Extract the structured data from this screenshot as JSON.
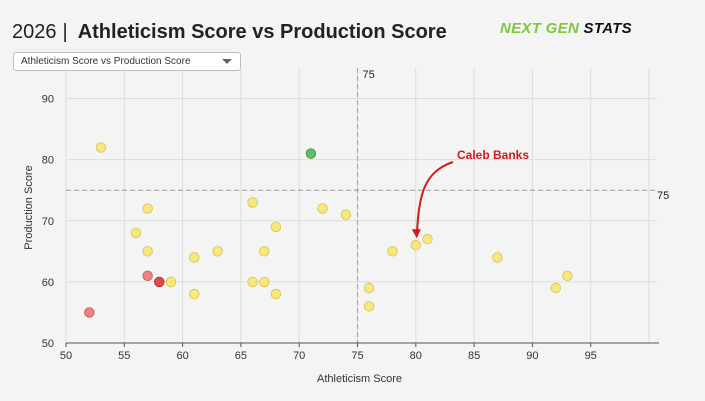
{
  "header": {
    "year": "2026",
    "separator": "|",
    "title": "Athleticism Score vs Production Score"
  },
  "logo": {
    "part1": "NEXT GEN",
    "part2": "STATS",
    "color_part1": "#7ec83a"
  },
  "dropdown": {
    "selected": "Athleticism Score vs Production Score",
    "icon": "chevron-down-icon"
  },
  "chart_data": {
    "type": "scatter",
    "xlabel": "Athleticism Score",
    "ylabel": "Production Score",
    "xlim": [
      50,
      100
    ],
    "ylim": [
      50,
      95
    ],
    "x_ticks": [
      50,
      55,
      60,
      65,
      70,
      75,
      80,
      85,
      90,
      95
    ],
    "y_ticks": [
      50,
      60,
      70,
      80,
      90
    ],
    "grid": true,
    "reference_lines": [
      {
        "axis": "x",
        "value": 75,
        "label": "75"
      },
      {
        "axis": "y",
        "value": 75,
        "label": "75"
      }
    ],
    "colors": {
      "yellow": "#f7e46a",
      "green": "#5cb85c",
      "red": "#e04040",
      "red_light": "#ef7a7a"
    },
    "points": [
      {
        "x": 53,
        "y": 82,
        "color": "yellow"
      },
      {
        "x": 71,
        "y": 81,
        "color": "green"
      },
      {
        "x": 57,
        "y": 72,
        "color": "yellow"
      },
      {
        "x": 66,
        "y": 73,
        "color": "yellow"
      },
      {
        "x": 72,
        "y": 72,
        "color": "yellow"
      },
      {
        "x": 74,
        "y": 71,
        "color": "yellow"
      },
      {
        "x": 56,
        "y": 68,
        "color": "yellow"
      },
      {
        "x": 68,
        "y": 69,
        "color": "yellow"
      },
      {
        "x": 57,
        "y": 65,
        "color": "yellow"
      },
      {
        "x": 61,
        "y": 64,
        "color": "yellow"
      },
      {
        "x": 63,
        "y": 65,
        "color": "yellow"
      },
      {
        "x": 67,
        "y": 65,
        "color": "yellow"
      },
      {
        "x": 57,
        "y": 61,
        "color": "red_light"
      },
      {
        "x": 58,
        "y": 60,
        "color": "red"
      },
      {
        "x": 59,
        "y": 60,
        "color": "yellow"
      },
      {
        "x": 61,
        "y": 58,
        "color": "yellow"
      },
      {
        "x": 66,
        "y": 60,
        "color": "yellow"
      },
      {
        "x": 67,
        "y": 60,
        "color": "yellow"
      },
      {
        "x": 68,
        "y": 58,
        "color": "yellow"
      },
      {
        "x": 52,
        "y": 55,
        "color": "red_light"
      },
      {
        "x": 76,
        "y": 59,
        "color": "yellow"
      },
      {
        "x": 76,
        "y": 56,
        "color": "yellow"
      },
      {
        "x": 78,
        "y": 65,
        "color": "yellow"
      },
      {
        "x": 80,
        "y": 66,
        "color": "yellow"
      },
      {
        "x": 81,
        "y": 67,
        "color": "yellow"
      },
      {
        "x": 87,
        "y": 64,
        "color": "yellow"
      },
      {
        "x": 92,
        "y": 59,
        "color": "yellow"
      },
      {
        "x": 93,
        "y": 61,
        "color": "yellow"
      }
    ],
    "annotations": [
      {
        "text": "Caleb Banks",
        "point_x": 80,
        "point_y": 66
      }
    ]
  }
}
